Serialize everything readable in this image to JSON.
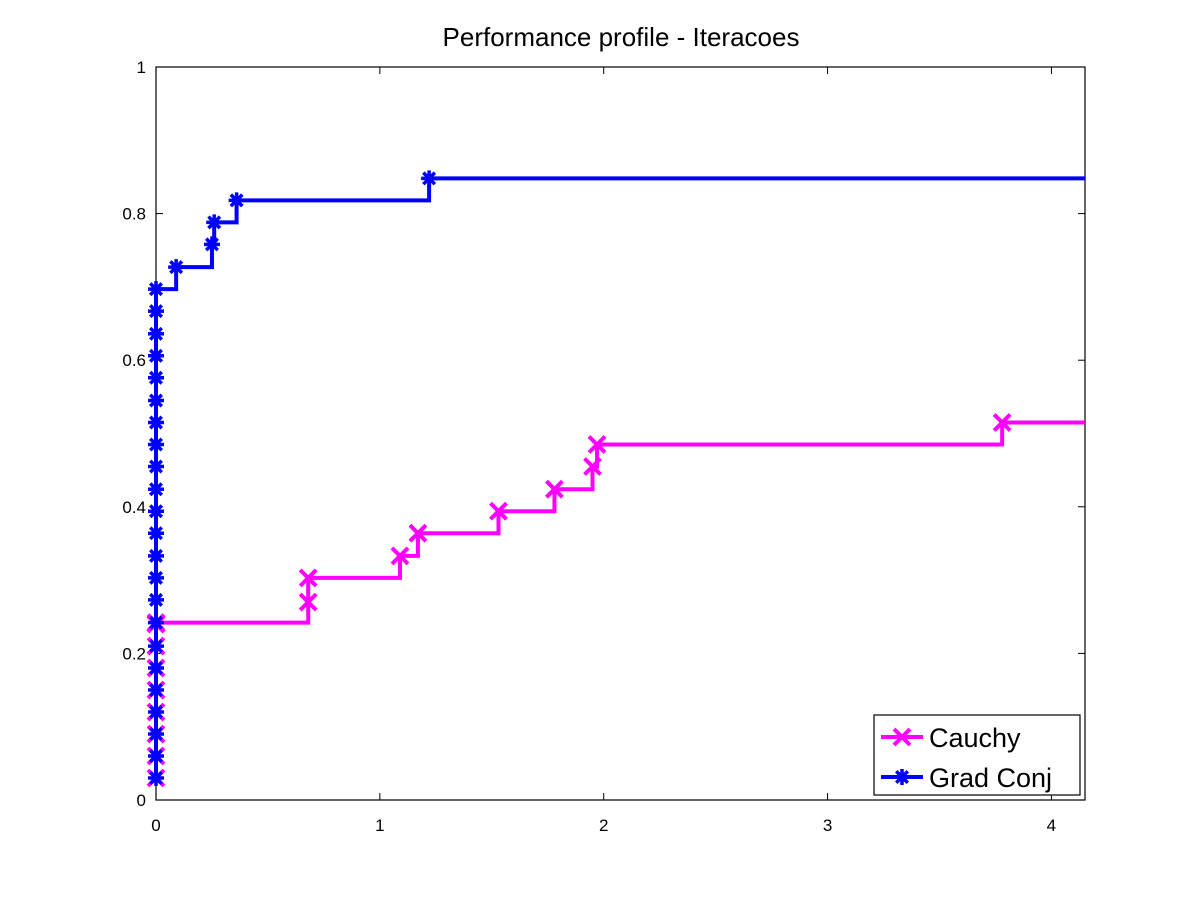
{
  "chart_data": {
    "type": "line",
    "title": "Performance profile - Iteracoes",
    "xlabel": "",
    "ylabel": "",
    "xlim": [
      0,
      4.15
    ],
    "ylim": [
      0,
      1
    ],
    "xticks": [
      0,
      1,
      2,
      3,
      4
    ],
    "xtick_labels": [
      "0",
      "1",
      "2",
      "3",
      "4"
    ],
    "yticks": [
      0,
      0.2,
      0.4,
      0.6,
      0.8,
      1
    ],
    "ytick_labels": [
      "0",
      "0.2",
      "0.4",
      "0.6",
      "0.8",
      "1"
    ],
    "grid": false,
    "legend_position": "bottom-right",
    "series": [
      {
        "name": "Cauchy",
        "color": "#ff00ff",
        "marker": "x",
        "step": true,
        "x": [
          0,
          0,
          0,
          0,
          0,
          0,
          0,
          0,
          0,
          0.68,
          0.68,
          1.09,
          1.17,
          1.53,
          1.78,
          1.95,
          1.97,
          3.78,
          4.15
        ],
        "y": [
          0.03,
          0.06,
          0.09,
          0.12,
          0.15,
          0.18,
          0.21,
          0.24,
          0.242,
          0.27,
          0.303,
          0.333,
          0.364,
          0.394,
          0.424,
          0.455,
          0.485,
          0.515,
          0.515
        ]
      },
      {
        "name": "Grad Conj",
        "color": "#0000ff",
        "marker": "*",
        "step": true,
        "x": [
          0,
          0,
          0,
          0,
          0,
          0,
          0,
          0,
          0,
          0,
          0,
          0,
          0,
          0,
          0,
          0,
          0,
          0,
          0,
          0,
          0,
          0,
          0,
          0.09,
          0.25,
          0.26,
          0.36,
          1.22,
          4.15
        ],
        "y": [
          0.03,
          0.06,
          0.09,
          0.12,
          0.15,
          0.18,
          0.21,
          0.242,
          0.273,
          0.303,
          0.333,
          0.364,
          0.394,
          0.424,
          0.455,
          0.485,
          0.515,
          0.545,
          0.576,
          0.606,
          0.636,
          0.667,
          0.697,
          0.727,
          0.758,
          0.788,
          0.818,
          0.848,
          0.848
        ]
      }
    ]
  }
}
